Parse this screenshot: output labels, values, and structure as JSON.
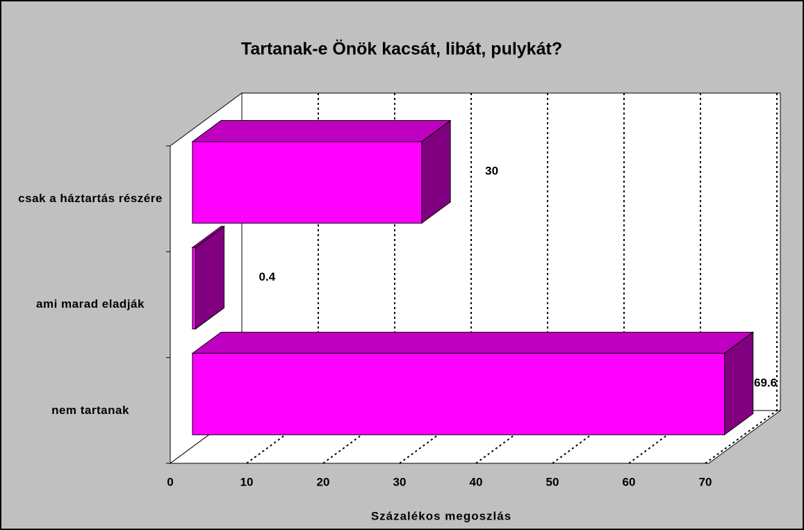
{
  "chart_data": {
    "type": "bar3d_horizontal",
    "title": "Tartanak-e Önök kacsát, libát, pulykát?",
    "x_label": "Százalékos megoszlás",
    "categories": [
      "csak a háztartás részére",
      "ami marad eladják",
      "nem tartanak"
    ],
    "values": [
      30,
      0.4,
      69.6
    ],
    "color": "#ff00ff",
    "xlim": [
      0,
      70
    ],
    "xticks": [
      0,
      10,
      20,
      30,
      40,
      50,
      60,
      70
    ],
    "grid": true
  }
}
